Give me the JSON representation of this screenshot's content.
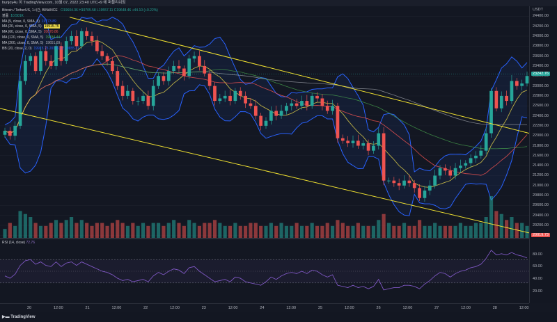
{
  "header": {
    "title": "hunjoy4u 이 TradingView.com, 10월 07, 2022 23:40 UTC+9 에 퍼블리쉬됨"
  },
  "symbol_line": {
    "text": "Bitcoin / TetherUS, 1시간, BINANCE",
    "ohlc": "O19604.36  H19705.58  L19557.11  C19648.46  +44.10 (+0.22%)"
  },
  "legend": [
    {
      "label": "볼륨",
      "value": "10.501K",
      "value_color": "#26a69a"
    },
    {
      "label": "MA (5, close, 0, SMA, 5)",
      "value": "19773.89",
      "value_color": "#2962ff"
    },
    {
      "label": "MA (20, close, 0, SMA, 5)",
      "value": "19915.75",
      "value_color": "#000000",
      "tag_bg": "#e6d54a"
    },
    {
      "label": "MA (60, close, 0, SMA, 5)",
      "value": "20070.86",
      "value_color": "#ef5350"
    },
    {
      "label": "MA (120, close, 0, SMA, 5)",
      "value": "19834.44",
      "value_color": "#4caf50"
    },
    {
      "label": "MA (200, close, 0, SMA, 5)",
      "value": "19651.69",
      "value_color": "#b2b5be"
    },
    {
      "label": "BB (20, close, 2, 0)",
      "value": "19915.75  20176.12  19655.37",
      "value_color": "#2962ff"
    }
  ],
  "price_scale": {
    "currency": "USDT",
    "ticks": [
      "24400.00",
      "24200.00",
      "24000.00",
      "23800.00",
      "23600.00",
      "23400.00",
      "23200.00",
      "23000.00",
      "22800.00",
      "22600.00",
      "22400.00",
      "22200.00",
      "22000.00",
      "21800.00",
      "21600.00",
      "21400.00",
      "21200.00",
      "21000.00",
      "20800.00",
      "20600.00",
      "20400.00",
      "20200.00",
      "20000.00"
    ],
    "current_price": "23242.76",
    "current_price_color": "#26a69a",
    "low_label": "20019.73",
    "low_label_color": "#ef5350"
  },
  "rsi": {
    "label": "RSI (14, close)",
    "value": "72.76",
    "ticks": [
      "80.00",
      "60.00",
      "40.00",
      "20.00"
    ]
  },
  "time_axis": {
    "labels": [
      "20",
      "12:00",
      "21",
      "12:00",
      "22",
      "12:00",
      "23",
      "12:00",
      "24",
      "12:00",
      "25",
      "12:00",
      "26",
      "12:00",
      "27",
      "12:00",
      "28",
      "12:00"
    ]
  },
  "footer": {
    "brand": "TradingView"
  },
  "colors": {
    "up": "#26a69a",
    "down": "#ef5350",
    "channel": "#f0e130",
    "bb": "#2962ff",
    "ma20": "#e6d54a",
    "ma60": "#ef5350",
    "ma120": "#4caf50",
    "ma200": "#9598a1"
  },
  "chart_data": {
    "type": "candlestick",
    "title": "Bitcoin / TetherUS, 1시간, BINANCE",
    "ylim": [
      19950,
      24600
    ],
    "closes": [
      22100,
      22000,
      22200,
      23100,
      23500,
      23600,
      23300,
      23700,
      23500,
      23400,
      23800,
      23500,
      23900,
      24000,
      23800,
      24100,
      24000,
      23900,
      23700,
      23600,
      23500,
      23300,
      23000,
      22800,
      22900,
      22700,
      22700,
      22800,
      22600,
      23000,
      23200,
      23100,
      23300,
      23400,
      23350,
      23200,
      23550,
      23600,
      23400,
      23250,
      23000,
      22700,
      22750,
      22800,
      22700,
      22900,
      22800,
      22650,
      22600,
      22400,
      22200,
      22300,
      22500,
      22400,
      22500,
      22600,
      22650,
      22600,
      22700,
      22600,
      22800,
      22750,
      22600,
      22500,
      22600,
      21950,
      21900,
      21850,
      21900,
      21800,
      21850,
      21700,
      21800,
      22050,
      21100,
      21100,
      21050,
      21000,
      21100,
      21050,
      20950,
      20750,
      20900,
      21000,
      21200,
      21350,
      21300,
      21200,
      21350,
      21400,
      21450,
      21550,
      21600,
      21700,
      22050,
      22900,
      22550,
      22800,
      22700,
      23100,
      23000,
      23050,
      23200
    ],
    "rsi_values": [
      42,
      38,
      45,
      60,
      68,
      70,
      62,
      66,
      60,
      58,
      66,
      58,
      64,
      66,
      60,
      66,
      62,
      58,
      54,
      50,
      48,
      44,
      38,
      34,
      36,
      32,
      34,
      36,
      32,
      42,
      48,
      44,
      50,
      54,
      52,
      46,
      56,
      58,
      50,
      44,
      38,
      32,
      34,
      36,
      32,
      40,
      38,
      32,
      30,
      28,
      26,
      32,
      40,
      36,
      42,
      46,
      48,
      46,
      50,
      46,
      52,
      50,
      44,
      40,
      44,
      26,
      24,
      22,
      26,
      22,
      24,
      20,
      24,
      36,
      18,
      20,
      22,
      22,
      26,
      26,
      24,
      20,
      28,
      34,
      42,
      48,
      46,
      40,
      46,
      50,
      52,
      56,
      58,
      62,
      72,
      86,
      78,
      80,
      78,
      82,
      78,
      76,
      72.76
    ],
    "volume_values": [
      3,
      5,
      4,
      9,
      8,
      7,
      5,
      4,
      4,
      5,
      6,
      5,
      6,
      7,
      5,
      6,
      5,
      4,
      5,
      5,
      4,
      5,
      6,
      5,
      4,
      5,
      4,
      5,
      4,
      5,
      5,
      4,
      5,
      6,
      5,
      4,
      6,
      5,
      4,
      5,
      5,
      6,
      5,
      4,
      4,
      5,
      4,
      4,
      5,
      5,
      4,
      4,
      5,
      4,
      5,
      4,
      4,
      5,
      4,
      4,
      5,
      4,
      4,
      5,
      4,
      6,
      5,
      4,
      4,
      5,
      4,
      4,
      4,
      6,
      8,
      5,
      4,
      4,
      5,
      4,
      4,
      6,
      4,
      4,
      5,
      4,
      4,
      4,
      4,
      5,
      4,
      4,
      5,
      5,
      7,
      14,
      9,
      8,
      6,
      7,
      5,
      5,
      4
    ]
  }
}
